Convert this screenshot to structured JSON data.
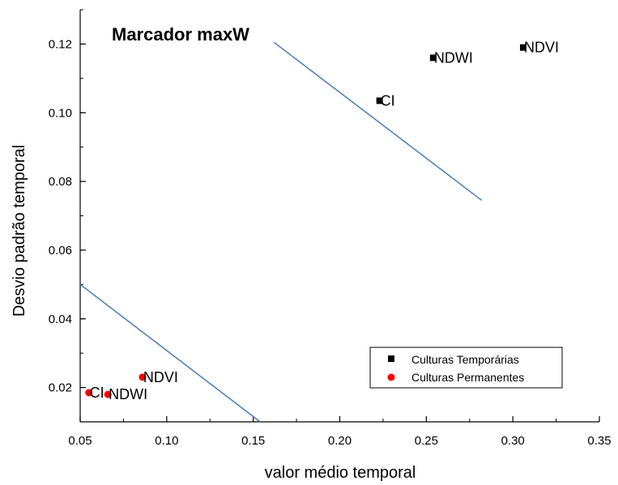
{
  "chart_data": {
    "type": "scatter",
    "title": "Marcador maxW",
    "xlabel": "valor médio temporal",
    "ylabel": "Desvio padrão temporal",
    "xlim": [
      0.05,
      0.35
    ],
    "ylim": [
      0.01,
      0.13
    ],
    "x_ticks": [
      0.05,
      0.1,
      0.15,
      0.2,
      0.25,
      0.3,
      0.35
    ],
    "x_tick_labels": [
      "0.05",
      "0.10",
      "0.15",
      "0.20",
      "0.25",
      "0.30",
      "0.35"
    ],
    "y_ticks": [
      0.02,
      0.04,
      0.06,
      0.08,
      0.1,
      0.12
    ],
    "y_tick_labels": [
      "0.02",
      "0.04",
      "0.06",
      "0.08",
      "0.10",
      "0.12"
    ],
    "grid": false,
    "legend_position": "bottom-right",
    "series": [
      {
        "name": "Culturas Temporárias",
        "marker": "square",
        "color": "#000000",
        "points": [
          {
            "label": "NDVI",
            "x": 0.306,
            "y": 0.119
          },
          {
            "label": "NDWI",
            "x": 0.254,
            "y": 0.116
          },
          {
            "label": "CI",
            "x": 0.223,
            "y": 0.1035
          }
        ]
      },
      {
        "name": "Culturas Permanentes",
        "marker": "circle",
        "color": "#ff0000",
        "points": [
          {
            "label": "NDVI",
            "x": 0.086,
            "y": 0.023
          },
          {
            "label": "NDWI",
            "x": 0.066,
            "y": 0.018
          },
          {
            "label": "CI",
            "x": 0.055,
            "y": 0.0185
          }
        ]
      }
    ],
    "lines": [
      {
        "color": "#4a7ab5",
        "points": [
          [
            0.162,
            0.1205
          ],
          [
            0.282,
            0.0745
          ]
        ]
      },
      {
        "color": "#4a7ab5",
        "points": [
          [
            0.05,
            0.05
          ],
          [
            0.154,
            0.01
          ]
        ]
      }
    ]
  }
}
